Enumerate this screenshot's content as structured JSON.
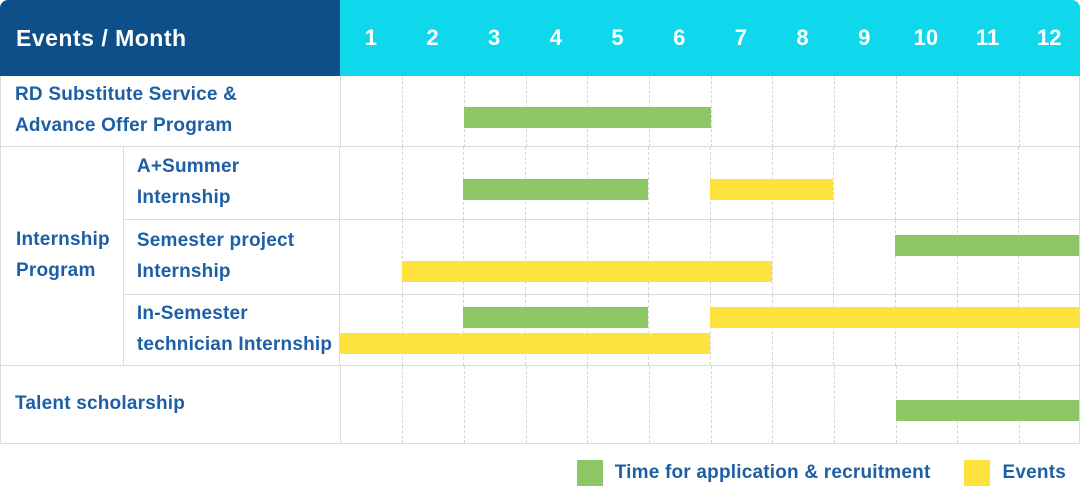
{
  "header": {
    "title": "Events / Month",
    "months": [
      "1",
      "2",
      "3",
      "4",
      "5",
      "6",
      "7",
      "8",
      "9",
      "10",
      "11",
      "12"
    ]
  },
  "colors": {
    "header_navy": "#0E4F8A",
    "header_cyan": "#0FD8EC",
    "bar_green": "#8CC665",
    "bar_yellow": "#FEE23D",
    "label_blue": "#1D5FA6",
    "grid_line": "#D7D7D7",
    "cell_border": "#DBDBDB"
  },
  "legend": {
    "items": [
      {
        "type": "application",
        "color": "#8CC665",
        "label": "Time for application & recruitment"
      },
      {
        "type": "event",
        "color": "#FEE23D",
        "label": "Events"
      }
    ]
  },
  "chart_data": {
    "type": "gantt",
    "title": "Events / Month",
    "x_unit": "month",
    "x_ticks": [
      1,
      2,
      3,
      4,
      5,
      6,
      7,
      8,
      9,
      10,
      11,
      12
    ],
    "x_range": [
      1,
      12
    ],
    "grid": "dashed-vertical-month-lines",
    "legend_position": "bottom-right",
    "bar_types": {
      "application": {
        "label": "Time for application & recruitment",
        "color": "#8CC665"
      },
      "event": {
        "label": "Events",
        "color": "#FEE23D"
      }
    },
    "group_label": "Internship Program",
    "rows": [
      {
        "id": "rd-substitute",
        "group": "",
        "label": "RD Substitute Service &\nAdvance Offer Program",
        "bars": [
          {
            "type": "application",
            "start_month": 3,
            "end_month": 6,
            "lane": "center"
          }
        ]
      },
      {
        "id": "a-summer-internship",
        "group": "Internship Program",
        "label": "A+Summer\nInternship",
        "bars": [
          {
            "type": "application",
            "start_month": 3,
            "end_month": 5,
            "lane": "center"
          },
          {
            "type": "event",
            "start_month": 7,
            "end_month": 8,
            "lane": "center"
          }
        ]
      },
      {
        "id": "semester-project-internship",
        "group": "Internship Program",
        "label": "Semester project\nInternship",
        "bars": [
          {
            "type": "application",
            "start_month": 10,
            "end_month": 12,
            "lane": "upper"
          },
          {
            "type": "event",
            "start_month": 2,
            "end_month": 7,
            "lane": "lower"
          }
        ]
      },
      {
        "id": "in-semester-technician-internship",
        "group": "Internship Program",
        "label": "In-Semester\ntechnician Internship",
        "bars": [
          {
            "type": "application",
            "start_month": 3,
            "end_month": 5,
            "lane": "upper"
          },
          {
            "type": "event",
            "start_month": 7,
            "end_month": 12,
            "lane": "upper"
          },
          {
            "type": "event",
            "start_month": 1,
            "end_month": 6,
            "lane": "lower"
          }
        ]
      },
      {
        "id": "talent-scholarship",
        "group": "",
        "label": "Talent scholarship",
        "bars": [
          {
            "type": "application",
            "start_month": 10,
            "end_month": 12,
            "lane": "center"
          }
        ]
      }
    ]
  }
}
